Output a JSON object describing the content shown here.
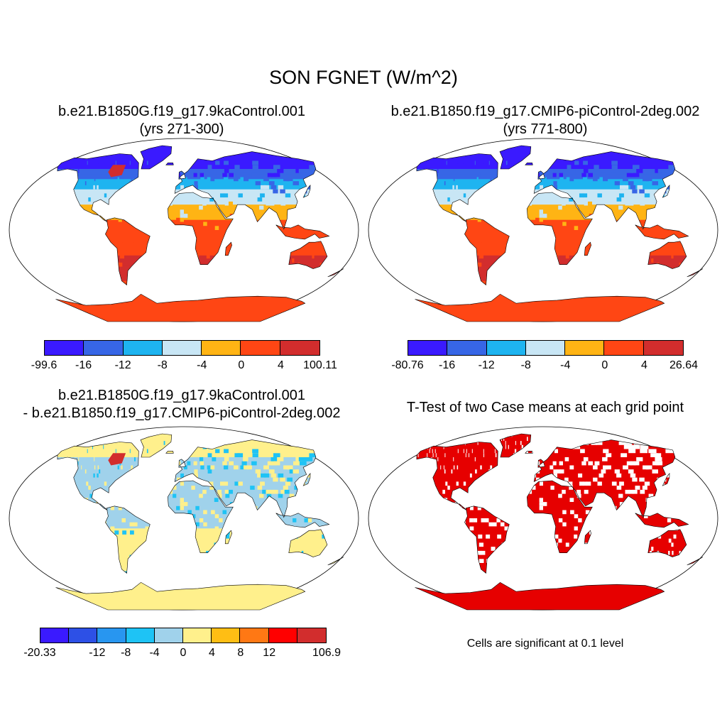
{
  "title": "SON FGNET (W/m^2)",
  "panels": {
    "case1": {
      "title_line1": "b.e21.B1850G.f19_g17.9kaControl.001",
      "title_line2": "(yrs 271-300)",
      "colorbar": {
        "colors": [
          "#3a1aff",
          "#3766e6",
          "#1eb4f0",
          "#c8e6f5",
          "#ffb414",
          "#ff4614",
          "#d22d2d"
        ],
        "labels": [
          "-99.6",
          "-16",
          "-12",
          "-8",
          "-4",
          "0",
          "4",
          "100.11"
        ]
      }
    },
    "case2": {
      "title_line1": "b.e21.B1850.f19_g17.CMIP6-piControl-2deg.002",
      "title_line2": "(yrs 771-800)",
      "colorbar": {
        "colors": [
          "#3a1aff",
          "#3766e6",
          "#1eb4f0",
          "#c8e6f5",
          "#ffb414",
          "#ff4614",
          "#d22d2d"
        ],
        "labels": [
          "-80.76",
          "-16",
          "-12",
          "-8",
          "-4",
          "0",
          "4",
          "26.64"
        ]
      }
    },
    "diff": {
      "title_line1": "b.e21.B1850G.f19_g17.9kaControl.001",
      "title_line2": "- b.e21.B1850.f19_g17.CMIP6-piControl-2deg.002",
      "colorbar": {
        "colors": [
          "#3a1aff",
          "#2d50e6",
          "#2896f0",
          "#1ec3f5",
          "#a0d2eb",
          "#fff08c",
          "#ffbe14",
          "#ff7814",
          "#ff0000",
          "#d22d2d"
        ],
        "labels": [
          "-20.33",
          "",
          "-12",
          "-8",
          "-4",
          "0",
          "4",
          "8",
          "12",
          "",
          "106.9"
        ]
      }
    },
    "ttest": {
      "title": "T-Test of two Case means at each grid point",
      "note": "Cells are significant at 0.1 level",
      "fill_color": "#e60000"
    }
  }
}
